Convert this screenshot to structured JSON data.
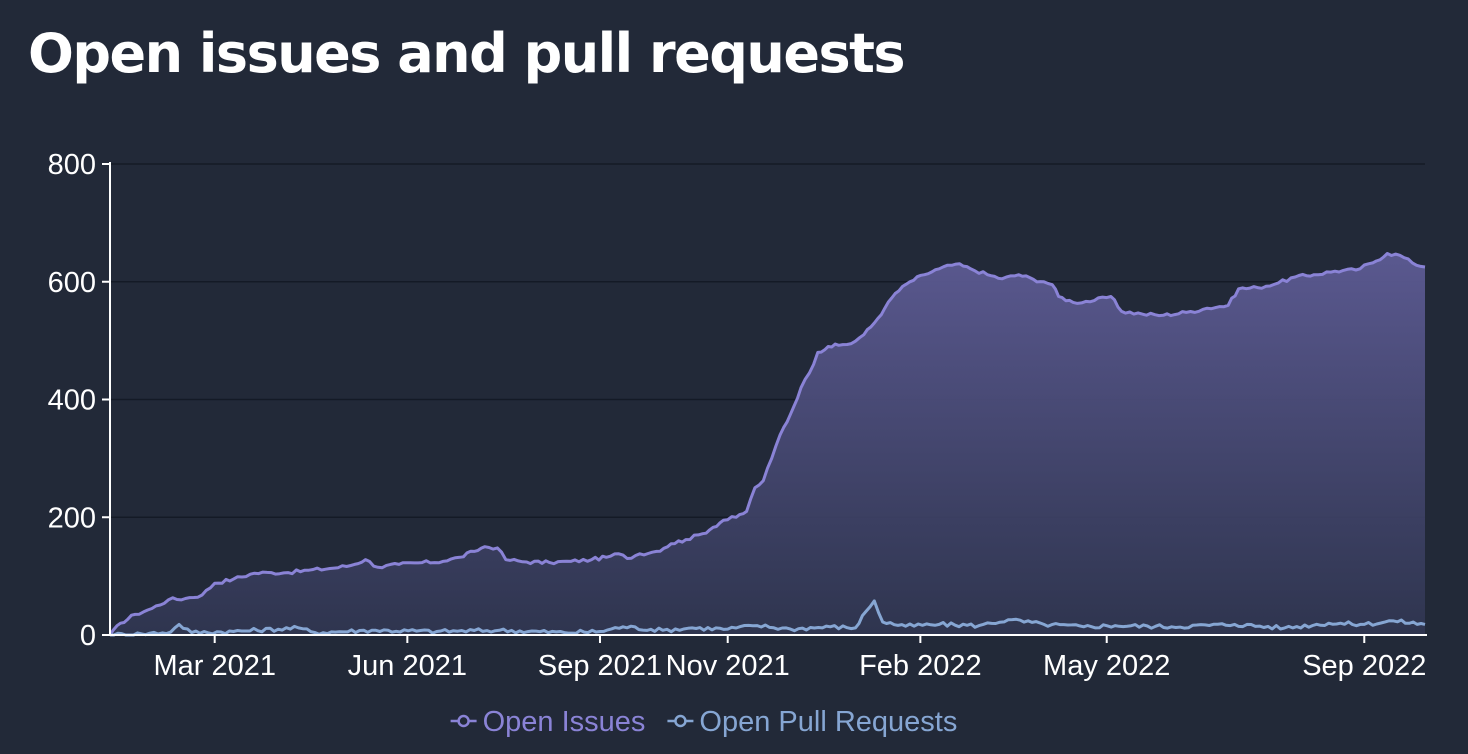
{
  "title": "Open issues and pull requests",
  "colors": {
    "background": "#222938",
    "grid": "#141a26",
    "axis": "#ffffff",
    "issues": "#8a83d6",
    "pulls": "#86a6d3"
  },
  "chart_data": {
    "type": "area",
    "title": "Open issues and pull requests",
    "xlabel": "",
    "ylabel": "",
    "ylim": [
      0,
      800
    ],
    "yticks": [
      0,
      200,
      400,
      600,
      800
    ],
    "ytick_labels": [
      "0",
      "200",
      "400",
      "600",
      "800"
    ],
    "xlim": [
      "2021-01-10",
      "2022-09-30"
    ],
    "xtick_labels": [
      "Mar 2021",
      "Jun 2021",
      "Sep 2021",
      "Nov 2021",
      "Feb 2022",
      "May 2022",
      "Sep 2022"
    ],
    "xtick_dates": [
      "2021-03-01",
      "2021-06-01",
      "2021-09-01",
      "2021-11-01",
      "2022-02-01",
      "2022-05-01",
      "2022-09-01"
    ],
    "grid": true,
    "legend_position": "bottom",
    "series": [
      {
        "name": "Open Issues",
        "color": "#8a83d6",
        "filled": true,
        "points": [
          [
            "2021-01-10",
            0
          ],
          [
            "2021-01-15",
            20
          ],
          [
            "2021-01-22",
            35
          ],
          [
            "2021-01-30",
            45
          ],
          [
            "2021-02-07",
            60
          ],
          [
            "2021-02-15",
            62
          ],
          [
            "2021-02-23",
            68
          ],
          [
            "2021-03-01",
            88
          ],
          [
            "2021-03-10",
            95
          ],
          [
            "2021-03-20",
            105
          ],
          [
            "2021-03-28",
            106
          ],
          [
            "2021-04-05",
            106
          ],
          [
            "2021-04-15",
            110
          ],
          [
            "2021-04-25",
            113
          ],
          [
            "2021-05-05",
            118
          ],
          [
            "2021-05-12",
            128
          ],
          [
            "2021-05-18",
            115
          ],
          [
            "2021-05-28",
            120
          ],
          [
            "2021-06-08",
            123
          ],
          [
            "2021-06-18",
            125
          ],
          [
            "2021-06-26",
            132
          ],
          [
            "2021-07-03",
            142
          ],
          [
            "2021-07-08",
            150
          ],
          [
            "2021-07-14",
            148
          ],
          [
            "2021-07-18",
            128
          ],
          [
            "2021-07-28",
            124
          ],
          [
            "2021-08-08",
            123
          ],
          [
            "2021-08-18",
            125
          ],
          [
            "2021-08-28",
            128
          ],
          [
            "2021-09-04",
            132
          ],
          [
            "2021-09-10",
            138
          ],
          [
            "2021-09-14",
            130
          ],
          [
            "2021-09-20",
            138
          ],
          [
            "2021-09-28",
            142
          ],
          [
            "2021-10-05",
            155
          ],
          [
            "2021-10-12",
            162
          ],
          [
            "2021-10-20",
            172
          ],
          [
            "2021-10-25",
            183
          ],
          [
            "2021-10-30",
            195
          ],
          [
            "2021-11-05",
            200
          ],
          [
            "2021-11-10",
            210
          ],
          [
            "2021-11-14",
            250
          ],
          [
            "2021-11-18",
            262
          ],
          [
            "2021-11-22",
            300
          ],
          [
            "2021-11-26",
            340
          ],
          [
            "2021-12-01",
            375
          ],
          [
            "2021-12-06",
            420
          ],
          [
            "2021-12-10",
            445
          ],
          [
            "2021-12-14",
            480
          ],
          [
            "2021-12-19",
            490
          ],
          [
            "2021-12-24",
            492
          ],
          [
            "2021-12-30",
            495
          ],
          [
            "2022-01-05",
            510
          ],
          [
            "2022-01-10",
            530
          ],
          [
            "2022-01-15",
            555
          ],
          [
            "2022-01-20",
            580
          ],
          [
            "2022-01-27",
            600
          ],
          [
            "2022-02-03",
            612
          ],
          [
            "2022-02-10",
            622
          ],
          [
            "2022-02-18",
            630
          ],
          [
            "2022-02-25",
            622
          ],
          [
            "2022-03-05",
            612
          ],
          [
            "2022-03-12",
            605
          ],
          [
            "2022-03-20",
            612
          ],
          [
            "2022-03-27",
            604
          ],
          [
            "2022-04-01",
            600
          ],
          [
            "2022-04-05",
            595
          ],
          [
            "2022-04-08",
            575
          ],
          [
            "2022-04-15",
            565
          ],
          [
            "2022-04-25",
            568
          ],
          [
            "2022-05-03",
            575
          ],
          [
            "2022-05-08",
            550
          ],
          [
            "2022-05-18",
            545
          ],
          [
            "2022-05-28",
            543
          ],
          [
            "2022-06-08",
            548
          ],
          [
            "2022-06-18",
            555
          ],
          [
            "2022-06-28",
            560
          ],
          [
            "2022-07-03",
            588
          ],
          [
            "2022-07-12",
            590
          ],
          [
            "2022-07-22",
            598
          ],
          [
            "2022-07-30",
            608
          ],
          [
            "2022-08-08",
            612
          ],
          [
            "2022-08-18",
            618
          ],
          [
            "2022-08-28",
            620
          ],
          [
            "2022-09-05",
            632
          ],
          [
            "2022-09-12",
            648
          ],
          [
            "2022-09-18",
            645
          ],
          [
            "2022-09-24",
            632
          ],
          [
            "2022-09-30",
            625
          ]
        ]
      },
      {
        "name": "Open Pull Requests",
        "color": "#86a6d3",
        "filled": false,
        "points": [
          [
            "2021-01-10",
            0
          ],
          [
            "2021-01-25",
            2
          ],
          [
            "2021-02-08",
            5
          ],
          [
            "2021-02-12",
            18
          ],
          [
            "2021-02-18",
            4
          ],
          [
            "2021-03-10",
            6
          ],
          [
            "2021-04-10",
            12
          ],
          [
            "2021-04-18",
            4
          ],
          [
            "2021-05-15",
            8
          ],
          [
            "2021-06-15",
            6
          ],
          [
            "2021-07-15",
            8
          ],
          [
            "2021-08-15",
            4
          ],
          [
            "2021-09-01",
            6
          ],
          [
            "2021-09-12",
            14
          ],
          [
            "2021-10-01",
            8
          ],
          [
            "2021-10-15",
            12
          ],
          [
            "2021-11-01",
            10
          ],
          [
            "2021-11-15",
            16
          ],
          [
            "2021-12-01",
            10
          ],
          [
            "2021-12-20",
            14
          ],
          [
            "2022-01-01",
            12
          ],
          [
            "2022-01-06",
            40
          ],
          [
            "2022-01-10",
            58
          ],
          [
            "2022-01-14",
            22
          ],
          [
            "2022-01-25",
            15
          ],
          [
            "2022-02-10",
            18
          ],
          [
            "2022-03-01",
            16
          ],
          [
            "2022-03-15",
            26
          ],
          [
            "2022-04-01",
            18
          ],
          [
            "2022-04-20",
            14
          ],
          [
            "2022-05-05",
            16
          ],
          [
            "2022-06-01",
            14
          ],
          [
            "2022-07-01",
            18
          ],
          [
            "2022-07-25",
            12
          ],
          [
            "2022-08-15",
            20
          ],
          [
            "2022-09-01",
            18
          ],
          [
            "2022-09-15",
            24
          ],
          [
            "2022-09-30",
            18
          ]
        ]
      }
    ]
  },
  "legend": [
    {
      "label": "Open Issues",
      "color": "#8a83d6"
    },
    {
      "label": "Open Pull Requests",
      "color": "#86a6d3"
    }
  ]
}
